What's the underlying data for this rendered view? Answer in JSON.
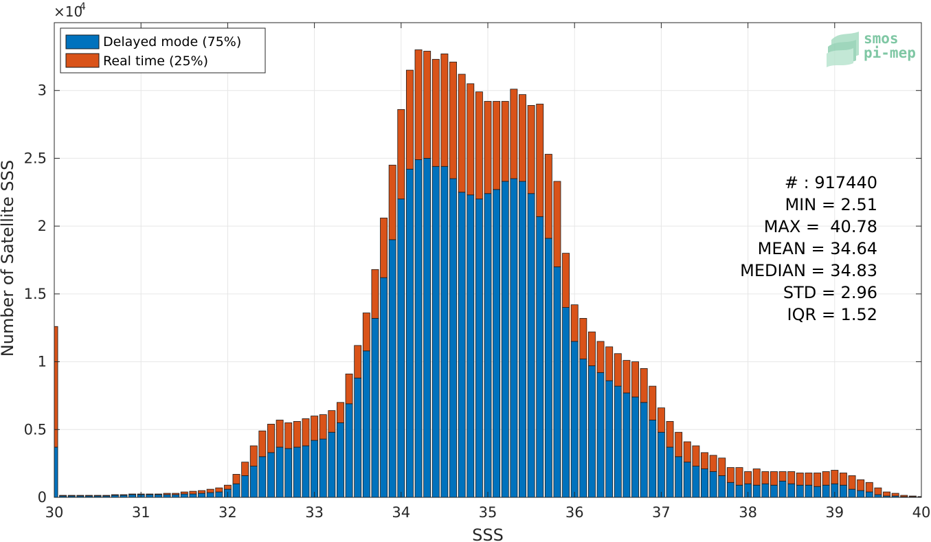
{
  "chart_data": {
    "type": "bar",
    "stacked": true,
    "xlabel": "SSS",
    "ylabel": "Number of Satellite SSS",
    "y_multiplier": "×10",
    "y_multiplier_exp": "4",
    "xlim": [
      30,
      40
    ],
    "ylim": [
      0,
      3.5
    ],
    "x_ticks": [
      "30",
      "31",
      "32",
      "33",
      "34",
      "35",
      "36",
      "37",
      "38",
      "39",
      "40"
    ],
    "y_ticks": [
      "0",
      "0.5",
      "1",
      "1.5",
      "2",
      "2.5",
      "3"
    ],
    "grid": true,
    "legend_position": "top-left",
    "bin_width": 0.1,
    "x": [
      30.0,
      30.1,
      30.2,
      30.3,
      30.4,
      30.5,
      30.6,
      30.7,
      30.8,
      30.9,
      31.0,
      31.1,
      31.2,
      31.3,
      31.4,
      31.5,
      31.6,
      31.7,
      31.8,
      31.9,
      32.0,
      32.1,
      32.2,
      32.3,
      32.4,
      32.5,
      32.6,
      32.7,
      32.8,
      32.9,
      33.0,
      33.1,
      33.2,
      33.3,
      33.4,
      33.5,
      33.6,
      33.7,
      33.8,
      33.9,
      34.0,
      34.1,
      34.2,
      34.3,
      34.4,
      34.5,
      34.6,
      34.7,
      34.8,
      34.9,
      35.0,
      35.1,
      35.2,
      35.3,
      35.4,
      35.5,
      35.6,
      35.7,
      35.8,
      35.9,
      36.0,
      36.1,
      36.2,
      36.3,
      36.4,
      36.5,
      36.6,
      36.7,
      36.8,
      36.9,
      37.0,
      37.1,
      37.2,
      37.3,
      37.4,
      37.5,
      37.6,
      37.7,
      37.8,
      37.9,
      38.0,
      38.1,
      38.2,
      38.3,
      38.4,
      38.5,
      38.6,
      38.7,
      38.8,
      38.9,
      39.0,
      39.1,
      39.2,
      39.3,
      39.4,
      39.5,
      39.6,
      39.7,
      39.8,
      39.9,
      40.0
    ],
    "series": [
      {
        "name": "Delayed mode (75%)",
        "color": "#0072bd",
        "values": [
          0.37,
          0.01,
          0.01,
          0.01,
          0.01,
          0.01,
          0.01,
          0.015,
          0.015,
          0.02,
          0.02,
          0.02,
          0.02,
          0.02,
          0.02,
          0.025,
          0.025,
          0.03,
          0.035,
          0.04,
          0.06,
          0.1,
          0.16,
          0.23,
          0.3,
          0.33,
          0.37,
          0.36,
          0.37,
          0.38,
          0.42,
          0.43,
          0.48,
          0.55,
          0.69,
          0.88,
          1.08,
          1.32,
          1.62,
          1.9,
          2.2,
          2.42,
          2.49,
          2.5,
          2.44,
          2.44,
          2.35,
          2.25,
          2.23,
          2.2,
          2.24,
          2.27,
          2.33,
          2.35,
          2.33,
          2.24,
          2.07,
          1.91,
          1.7,
          1.4,
          1.15,
          1.02,
          0.97,
          0.92,
          0.86,
          0.82,
          0.77,
          0.74,
          0.7,
          0.57,
          0.48,
          0.37,
          0.3,
          0.26,
          0.23,
          0.21,
          0.19,
          0.16,
          0.11,
          0.09,
          0.1,
          0.09,
          0.1,
          0.09,
          0.12,
          0.1,
          0.09,
          0.09,
          0.08,
          0.09,
          0.1,
          0.09,
          0.06,
          0.05,
          0.04,
          0.02,
          0.01,
          0.01,
          0.005,
          0.005,
          0.003
        ]
      },
      {
        "name": "Real time (25%)",
        "color": "#d95319",
        "values": [
          0.89,
          0.005,
          0.005,
          0.005,
          0.005,
          0.005,
          0.005,
          0.005,
          0.005,
          0.005,
          0.005,
          0.005,
          0.005,
          0.01,
          0.01,
          0.015,
          0.02,
          0.02,
          0.025,
          0.03,
          0.03,
          0.07,
          0.1,
          0.15,
          0.19,
          0.21,
          0.2,
          0.19,
          0.19,
          0.2,
          0.18,
          0.18,
          0.16,
          0.15,
          0.22,
          0.24,
          0.28,
          0.36,
          0.44,
          0.55,
          0.66,
          0.73,
          0.81,
          0.79,
          0.79,
          0.83,
          0.86,
          0.87,
          0.82,
          0.79,
          0.68,
          0.65,
          0.59,
          0.66,
          0.64,
          0.65,
          0.83,
          0.62,
          0.63,
          0.4,
          0.27,
          0.3,
          0.25,
          0.23,
          0.25,
          0.24,
          0.24,
          0.26,
          0.25,
          0.25,
          0.18,
          0.19,
          0.18,
          0.15,
          0.15,
          0.12,
          0.12,
          0.13,
          0.11,
          0.13,
          0.09,
          0.12,
          0.09,
          0.1,
          0.07,
          0.09,
          0.09,
          0.09,
          0.1,
          0.1,
          0.1,
          0.09,
          0.1,
          0.08,
          0.07,
          0.05,
          0.03,
          0.02,
          0.01,
          0.005,
          0.003
        ]
      }
    ],
    "annotations": [
      "# : 917440",
      "MIN = 2.51",
      "MAX =  40.78",
      "MEAN = 34.64",
      "MEDIAN = 34.83",
      "STD = 2.96",
      "IQR = 1.52"
    ]
  },
  "logo": {
    "line1": "smos",
    "line2": "pi-mep"
  },
  "colors": {
    "axis": "#262626",
    "grid": "#e6e6e6",
    "edge": "#1a1a1a"
  }
}
